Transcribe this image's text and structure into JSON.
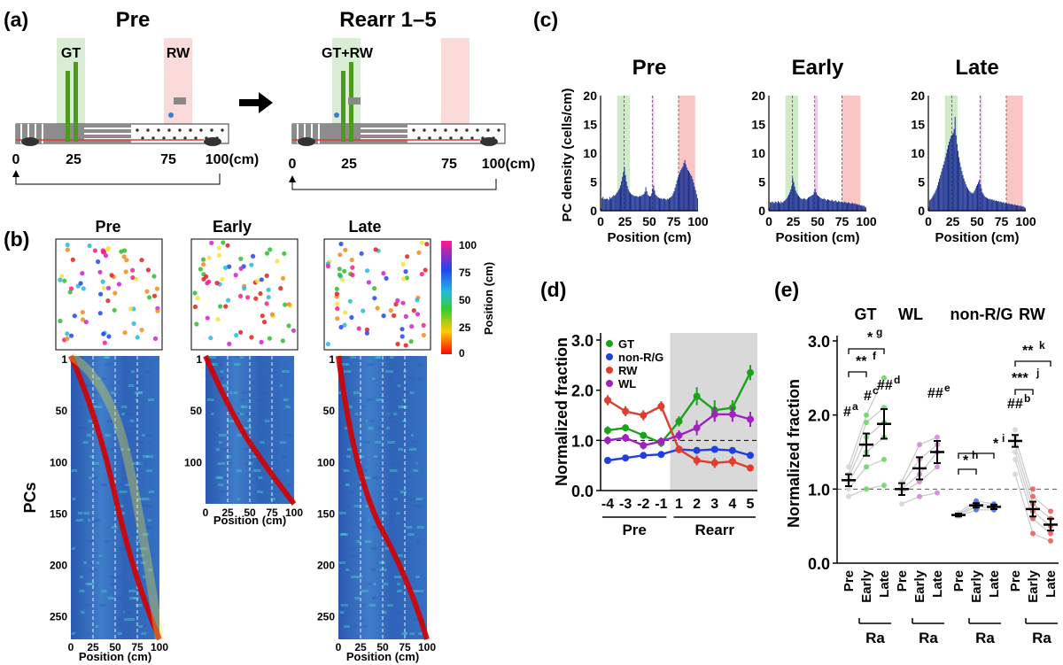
{
  "panel_labels": {
    "a": "(a)",
    "b": "(b)",
    "c": "(c)",
    "d": "(d)",
    "e": "(e)"
  },
  "panel_a": {
    "left_title": "Pre",
    "right_title": "Rearr 1–5",
    "gt_label": "GT",
    "rw_label": "RW",
    "gtrw_label": "GT+RW",
    "positions": [
      "0",
      "25",
      "75",
      "100(cm)"
    ]
  },
  "panel_b": {
    "titles": [
      "Pre",
      "Early",
      "Late"
    ],
    "ylabel": "PCs",
    "xlabel": "Position (cm)",
    "xticks": [
      "0",
      "25",
      "50",
      "75",
      "100"
    ],
    "pre_yticks": [
      "1",
      "50",
      "100",
      "150",
      "200",
      "250"
    ],
    "early_yticks": [
      "1",
      "50",
      "100"
    ],
    "late_yticks": [
      "1",
      "50",
      "100",
      "150",
      "200",
      "250"
    ],
    "colorbar_label": "Position (cm)",
    "colorbar_ticks": [
      "100",
      "75",
      "50",
      "25",
      "0"
    ],
    "colors": {
      "ridge": "#d40000",
      "background": "#2c5fb3",
      "cyan": "#52c6d8",
      "yellow": "#f3e33a"
    }
  },
  "chart_data": [
    {
      "type": "bar",
      "id": "c-pre",
      "title": "Pre",
      "xlabel": "Position (cm)",
      "ylabel": "PC density (cells/cm)",
      "xticks": [
        "0",
        "25",
        "50",
        "75",
        "100"
      ],
      "yticks": [
        "0",
        "5",
        "10",
        "15",
        "20"
      ],
      "xlim": [
        0,
        100
      ],
      "ylim": [
        0,
        20
      ],
      "zones": [
        {
          "name": "GT",
          "from": 17,
          "to": 30,
          "color": "#cfe9c9"
        },
        {
          "name": "WL",
          "from": 53,
          "to": 55,
          "color": "#f2c7f2"
        },
        {
          "name": "RW",
          "from": 80,
          "to": 97,
          "color": "#f9c5c5"
        }
      ],
      "values": [
        0.4,
        2.2,
        2.4,
        2,
        2.1,
        2,
        2.2,
        2,
        1.9,
        2.4,
        2.1,
        2.3,
        2.5,
        2.7,
        2.6,
        2.8,
        3.1,
        3.3,
        3.6,
        3.9,
        4.4,
        5.1,
        5.9,
        6.7,
        7.5,
        6.2,
        5.1,
        4.3,
        3.7,
        3.3,
        3.1,
        2.9,
        2.8,
        2.7,
        2.6,
        2.5,
        2.6,
        2.5,
        2.4,
        2.5,
        2.6,
        2.5,
        2.7,
        2.8,
        2.9,
        3.3,
        4.1,
        3.4,
        2.8,
        2.6,
        2.5,
        2.6,
        3,
        3.8,
        4.4,
        3.5,
        2.8,
        2.6,
        2.4,
        2.3,
        2.2,
        2.1,
        2.2,
        2,
        2.1,
        2.2,
        2,
        1.9,
        2.1,
        2,
        2.2,
        2.3,
        2.4,
        2.6,
        3,
        3.4,
        4,
        4.6,
        5.3,
        5.8,
        6.3,
        6.7,
        7.1,
        7.4,
        7.7,
        8.3,
        8.8,
        8.1,
        7.5,
        7.1,
        6.9,
        6.6,
        6.3,
        6,
        5.5,
        4.9,
        4.2,
        3.6,
        2.9,
        2.2
      ]
    },
    {
      "type": "bar",
      "id": "c-early",
      "title": "Early",
      "xlabel": "Position (cm)",
      "xticks": [
        "0",
        "25",
        "50",
        "75",
        "100"
      ],
      "yticks": [
        "0",
        "5",
        "10",
        "15",
        "20"
      ],
      "xlim": [
        0,
        100
      ],
      "ylim": [
        0,
        20
      ],
      "zones": [
        {
          "name": "GT",
          "from": 17,
          "to": 30,
          "color": "#cfe9c9"
        },
        {
          "name": "WL",
          "from": 47,
          "to": 50,
          "color": "#f2c7f2"
        },
        {
          "name": "RW",
          "from": 75,
          "to": 94,
          "color": "#f9c5c5"
        }
      ],
      "values": [
        0.5,
        1.5,
        1.4,
        1.6,
        1.5,
        1.3,
        1.6,
        1.5,
        1.4,
        1.7,
        1.5,
        1.3,
        1.6,
        1.4,
        1.5,
        1.7,
        1.8,
        2,
        2.2,
        2.5,
        2.8,
        3.2,
        3.7,
        4.3,
        5.7,
        5,
        4.2,
        3.5,
        3.1,
        2.8,
        2.6,
        2.4,
        2.2,
        2.1,
        2,
        2.1,
        2.2,
        2,
        1.9,
        2.1,
        2.3,
        2.4,
        2.5,
        2.6,
        2.7,
        2.8,
        3.3,
        3.8,
        3.2,
        2.8,
        2.6,
        2.5,
        2.3,
        2.2,
        2.1,
        2,
        2.2,
        2,
        1.9,
        1.8,
        2,
        1.9,
        1.8,
        1.7,
        1.9,
        1.8,
        1.6,
        1.7,
        1.8,
        1.6,
        1.5,
        1.7,
        1.6,
        1.5,
        1.6,
        1.5,
        1.4,
        1.6,
        1.5,
        1.4,
        1.3,
        1.5,
        1.4,
        1.3,
        1.2,
        1.4,
        1.3,
        1.2,
        1.3,
        1.1,
        1.2,
        1,
        1.1,
        1,
        0.9,
        1,
        0.8,
        0.9,
        0.7,
        0.6
      ]
    },
    {
      "type": "bar",
      "id": "c-late",
      "title": "Late",
      "xlabel": "Position (cm)",
      "xticks": [
        "0",
        "25",
        "50",
        "75",
        "100"
      ],
      "yticks": [
        "0",
        "5",
        "10",
        "15",
        "20"
      ],
      "xlim": [
        0,
        100
      ],
      "ylim": [
        0,
        20
      ],
      "zones": [
        {
          "name": "GT",
          "from": 17,
          "to": 30,
          "color": "#cfe9c9"
        },
        {
          "name": "WL",
          "from": 53,
          "to": 55,
          "color": "#f2c7f2"
        },
        {
          "name": "RW",
          "from": 80,
          "to": 97,
          "color": "#f9c5c5"
        }
      ],
      "values": [
        0.6,
        1.8,
        2,
        2.2,
        2.5,
        2.8,
        3.1,
        3.5,
        3.9,
        4.4,
        5,
        5.6,
        6.2,
        6.8,
        7.4,
        8,
        8.6,
        9.3,
        10,
        10.7,
        11.4,
        12,
        12.5,
        13,
        13.2,
        13.5,
        14.2,
        16.3,
        13.1,
        11.6,
        10.4,
        9.3,
        8.4,
        7.6,
        6.9,
        6.2,
        5.6,
        5.1,
        4.6,
        4.2,
        3.9,
        3.6,
        3.4,
        3.2,
        3.1,
        3,
        3.2,
        3.5,
        3.9,
        4.3,
        4.6,
        5,
        5.4,
        4.6,
        3.9,
        3.2,
        2.9,
        2.6,
        2.4,
        2.3,
        2.2,
        2.1,
        2,
        2.1,
        1.9,
        2,
        1.8,
        1.9,
        1.7,
        1.8,
        1.7,
        1.6,
        1.7,
        1.5,
        1.6,
        1.5,
        1.4,
        1.5,
        1.3,
        1.4,
        1.3,
        1.2,
        1.3,
        1.2,
        1.1,
        1.2,
        1.1,
        1,
        1.1,
        1,
        0.9,
        1,
        0.9,
        0.8,
        0.9,
        0.8,
        0.7,
        0.8,
        0.6,
        0.5
      ]
    },
    {
      "type": "line",
      "id": "d",
      "xlabel": "",
      "ylabel": "Normalized fraction",
      "categories": [
        "-4",
        "-3",
        "-2",
        "-1",
        "1",
        "2",
        "3",
        "4",
        "5"
      ],
      "group_labels": [
        "Pre",
        "Rearr"
      ],
      "yticks": [
        "0.0",
        "1.0",
        "2.0",
        "3.0"
      ],
      "ylim": [
        0,
        3
      ],
      "reference_line": 1.0,
      "shaded_region": "Rearr",
      "series": [
        {
          "name": "GT",
          "color": "#1aa31a",
          "values": [
            1.2,
            1.25,
            1.1,
            0.95,
            1.38,
            1.88,
            1.6,
            1.65,
            2.35
          ],
          "errors": [
            0.08,
            0.07,
            0.07,
            0.08,
            0.1,
            0.18,
            0.2,
            0.15,
            0.15
          ]
        },
        {
          "name": "non-R/G",
          "color": "#1f3fe0",
          "values": [
            0.6,
            0.65,
            0.7,
            0.72,
            0.82,
            0.8,
            0.82,
            0.8,
            0.7
          ],
          "errors": [
            0.03,
            0.03,
            0.03,
            0.03,
            0.04,
            0.04,
            0.04,
            0.04,
            0.04
          ]
        },
        {
          "name": "RW",
          "color": "#e33b2c",
          "values": [
            1.8,
            1.58,
            1.5,
            1.68,
            0.82,
            0.6,
            0.55,
            0.58,
            0.45
          ],
          "errors": [
            0.1,
            0.1,
            0.1,
            0.1,
            0.08,
            0.1,
            0.1,
            0.1,
            0.05
          ]
        },
        {
          "name": "WL",
          "color": "#a020c0",
          "values": [
            1.0,
            1.05,
            0.9,
            0.98,
            1.1,
            1.25,
            1.52,
            1.52,
            1.42
          ],
          "errors": [
            0.08,
            0.08,
            0.08,
            0.08,
            0.1,
            0.15,
            0.15,
            0.15,
            0.15
          ]
        }
      ]
    },
    {
      "type": "scatter",
      "id": "e",
      "ylabel": "Normalized fraction",
      "yticks": [
        "0.0",
        "1.0",
        "2.0",
        "3.0"
      ],
      "ylim": [
        0,
        3
      ],
      "reference_line": 1.0,
      "group_labels": [
        "GT",
        "WL",
        "non-R/G",
        "RW"
      ],
      "conditions": [
        "Pre",
        "Early",
        "Late"
      ],
      "bracket_label": "Ra",
      "groups": [
        {
          "name": "GT",
          "color": "#6cd66c",
          "means": [
            1.12,
            1.6,
            1.88
          ],
          "sems": [
            0.08,
            0.15,
            0.2
          ],
          "points": [
            [
              0.9,
              1.0,
              1.1,
              1.15,
              1.2,
              1.3
            ],
            [
              1.0,
              1.3,
              1.5,
              1.7,
              1.9,
              2.0
            ],
            [
              1.05,
              1.4,
              1.7,
              1.9,
              2.1,
              2.5
            ]
          ]
        },
        {
          "name": "WL",
          "color": "#d58ad5",
          "means": [
            1.0,
            1.28,
            1.5
          ],
          "sems": [
            0.08,
            0.15,
            0.15
          ],
          "points": [
            [
              0.8,
              0.95,
              1.0,
              1.05,
              1.1
            ],
            [
              0.9,
              1.1,
              1.2,
              1.4,
              1.6
            ],
            [
              0.95,
              1.3,
              1.5,
              1.6,
              1.7
            ]
          ]
        },
        {
          "name": "non-R/G",
          "color": "#4e6fe0",
          "means": [
            0.65,
            0.78,
            0.76
          ],
          "sems": [
            0.02,
            0.03,
            0.03
          ],
          "points": [
            [
              0.63,
              0.65,
              0.66,
              0.68
            ],
            [
              0.72,
              0.76,
              0.8,
              0.84
            ],
            [
              0.72,
              0.75,
              0.78,
              0.8
            ]
          ]
        },
        {
          "name": "RW",
          "color": "#e86060",
          "means": [
            1.65,
            0.73,
            0.52
          ],
          "sems": [
            0.08,
            0.1,
            0.08
          ],
          "points": [
            [
              1.2,
              1.4,
              1.5,
              1.6,
              1.7,
              1.8
            ],
            [
              0.4,
              0.6,
              0.7,
              0.8,
              0.9,
              1.0
            ],
            [
              0.3,
              0.4,
              0.5,
              0.6,
              0.7
            ]
          ]
        }
      ],
      "annotations": {
        "gt_hash_a": "#",
        "gt_a": "a",
        "gt_hash_c": "#",
        "gt_c": "c",
        "gt_hash_d": "##",
        "gt_d": "d",
        "gt_star_f": "**",
        "gt_f": "f",
        "gt_star_g": "*",
        "gt_g": "g",
        "wl_hash_e": "##",
        "wl_e": "e",
        "nrg_star_h": "*",
        "nrg_h": "h",
        "nrg_star_i": "*",
        "nrg_i": "i",
        "rw_hash_b": "##",
        "rw_b": "b",
        "rw_star_j": "***",
        "rw_j": "j",
        "rw_star_k": "**",
        "rw_k": "k"
      }
    }
  ]
}
